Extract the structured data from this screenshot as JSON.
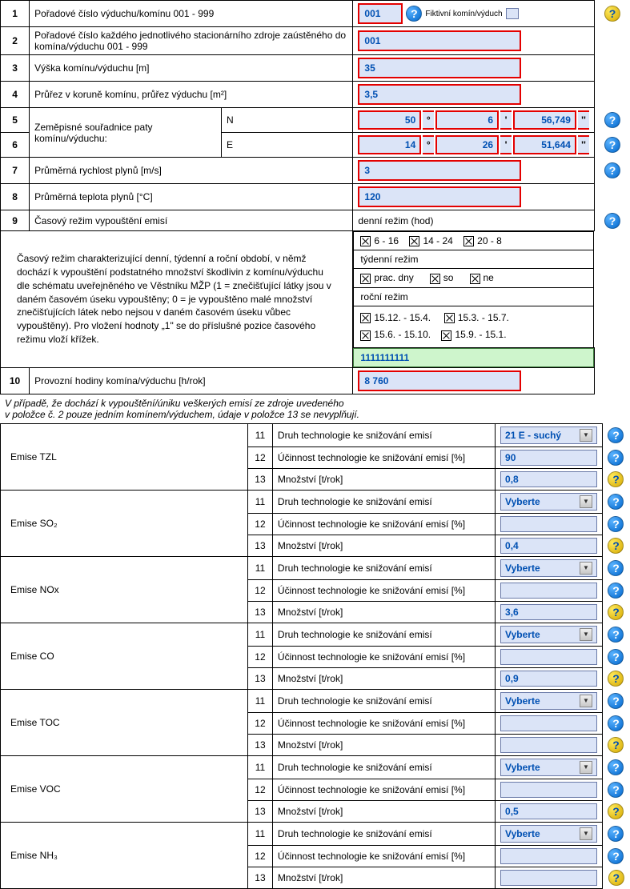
{
  "rows": {
    "r1": {
      "num": "1",
      "label": "Pořadové číslo výduchu/komínu       001 - 999",
      "value": "001",
      "fictive_label": "Fiktivní komín/výduch"
    },
    "r2": {
      "num": "2",
      "label": "Pořadové číslo každého jednotlivého stacionárního zdroje zaústěného do komína/výduchu       001 - 999",
      "value": "001"
    },
    "r3": {
      "num": "3",
      "label": "Výška komínu/výduchu     [m]",
      "value": "35"
    },
    "r4": {
      "num": "4",
      "label": "Průřez v koruně komínu, průřez výduchu  [m²]",
      "value": "3,5"
    },
    "r5": {
      "num": "5",
      "label": "Zeměpisné souřadnice paty komínu/výduchu:",
      "axis": "N",
      "deg": "50",
      "min": "6",
      "sec": "56,749"
    },
    "r6": {
      "num": "6",
      "axis": "E",
      "deg": "14",
      "min": "26",
      "sec": "51,644"
    },
    "r7": {
      "num": "7",
      "label": "Průměrná rychlost plynů     [m/s]",
      "value": "3"
    },
    "r8": {
      "num": "8",
      "label": "Průměrná teplota plynů     [°C]",
      "value": "120"
    },
    "r9": {
      "num": "9",
      "label": "Časový režim vypouštění emisí",
      "value": "denní režim (hod)"
    },
    "r10": {
      "num": "10",
      "label": "Provozní hodiny komína/výduchu       [h/rok]",
      "value": "8 760"
    }
  },
  "regime_desc": "Časový režim charakterizující denní, týdenní a roční období, v němž dochází k vypouštění podstatného množství škodlivin z komínu/výduchu dle schématu uveřejněného ve Věstníku MŽP (1 = znečišťující látky jsou v daném časovém úseku vypouštěny; 0 = je vypouštěno malé množství znečišťujících látek nebo nejsou v daném časovém úseku vůbec vypouštěny). Pro vložení hodnoty „1\" se do příslušné pozice časového režimu vloží křížek.",
  "daily": {
    "a": "6 - 16",
    "b": "14 - 24",
    "c": "20 - 8"
  },
  "weekly_label": "týdenní režim",
  "weekly": {
    "a": "prac. dny",
    "b": "so",
    "c": "ne"
  },
  "yearly_label": "roční režim",
  "yearly": {
    "a": "15.12. - 15.4.",
    "b": "15.3. - 15.7.",
    "c": "15.6. - 15.10.",
    "d": "15.9. - 15.1."
  },
  "regime_code": "1111111111",
  "note1": "V případě, že dochází k vypouštění/úniku veškerých emisí ze zdroje uvedeného",
  "note2": "v položce č. 2 pouze jedním komínem/výduchem, údaje v položce 13 se nevyplňují.",
  "emise_labels": {
    "n11": "11",
    "l11": "Druh technologie ke snižování emisí",
    "n12": "12",
    "l12": "Účinnost technologie ke snižování emisí [%]",
    "n13": "13",
    "l13": "Množství  [t/rok]"
  },
  "emise": [
    {
      "name": "Emise  TZL",
      "v11": "21 E - suchý",
      "dd": true,
      "v12": "90",
      "v13": "0,8"
    },
    {
      "name": "Emise  SO₂",
      "v11": "Vyberte",
      "dd": true,
      "v12": "",
      "v13": "0,4"
    },
    {
      "name": "Emise  NOx",
      "v11": "Vyberte",
      "dd": true,
      "v12": "",
      "v13": "3,6"
    },
    {
      "name": "Emise  CO",
      "v11": "Vyberte",
      "dd": true,
      "v12": "",
      "v13": "0,9"
    },
    {
      "name": "Emise  TOC",
      "v11": "Vyberte",
      "dd": true,
      "v12": "",
      "v13": ""
    },
    {
      "name": "Emise  VOC",
      "v11": "Vyberte",
      "dd": true,
      "v12": "",
      "v13": "0,5"
    },
    {
      "name": "Emise  NH₃",
      "v11": "Vyberte",
      "dd": true,
      "v12": "",
      "v13": ""
    }
  ]
}
